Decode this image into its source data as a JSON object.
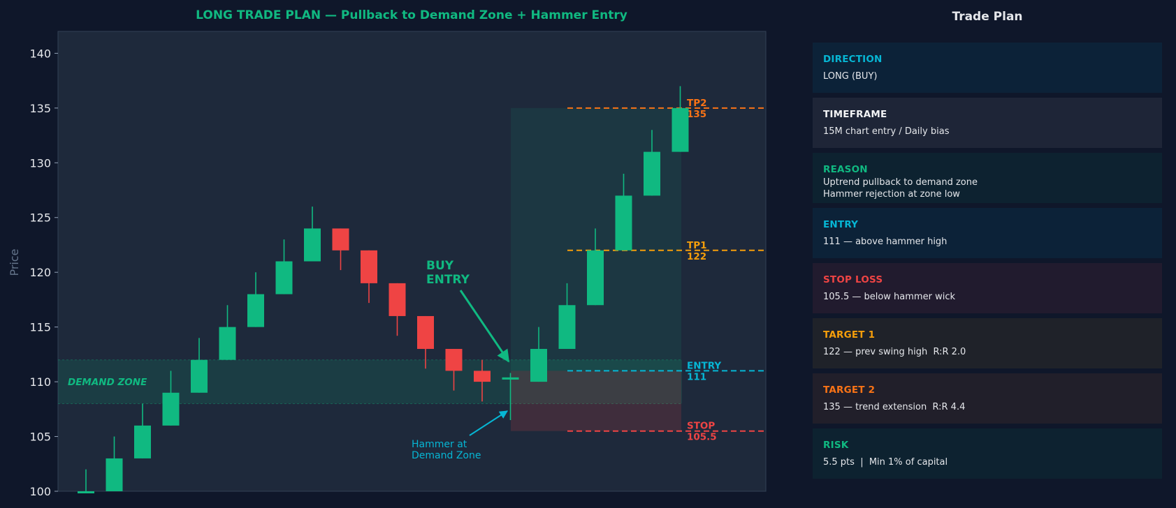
{
  "chart_data": {
    "type": "candlestick",
    "title": "LONG TRADE PLAN — Pullback to Demand Zone + Hammer Entry",
    "ylabel": "Price",
    "ylim": [
      100,
      142
    ],
    "yticks": [
      100,
      105,
      110,
      115,
      120,
      125,
      130,
      135,
      140
    ],
    "candles": [
      {
        "open": 100,
        "high": 102,
        "low": 100,
        "close": 100
      },
      {
        "open": 100,
        "high": 105,
        "low": 100,
        "close": 103
      },
      {
        "open": 103,
        "high": 108,
        "low": 103,
        "close": 106
      },
      {
        "open": 106,
        "high": 111,
        "low": 106,
        "close": 109
      },
      {
        "open": 109,
        "high": 114,
        "low": 109,
        "close": 112
      },
      {
        "open": 112,
        "high": 117,
        "low": 112,
        "close": 115
      },
      {
        "open": 115,
        "high": 120,
        "low": 115,
        "close": 118
      },
      {
        "open": 118,
        "high": 123,
        "low": 118,
        "close": 121
      },
      {
        "open": 121,
        "high": 126,
        "low": 121,
        "close": 124
      },
      {
        "open": 124,
        "high": 124,
        "low": 120.2,
        "close": 122
      },
      {
        "open": 122,
        "high": 122,
        "low": 117.2,
        "close": 119
      },
      {
        "open": 119,
        "high": 119,
        "low": 114.2,
        "close": 116
      },
      {
        "open": 116,
        "high": 116,
        "low": 111.2,
        "close": 113
      },
      {
        "open": 113,
        "high": 113,
        "low": 109.2,
        "close": 111
      },
      {
        "open": 111,
        "high": 112,
        "low": 108.2,
        "close": 110
      },
      {
        "open": 110.2,
        "high": 110.8,
        "low": 106.5,
        "close": 110.4
      },
      {
        "open": 110,
        "high": 115,
        "low": 110,
        "close": 113
      },
      {
        "open": 113,
        "high": 119,
        "low": 113,
        "close": 117
      },
      {
        "open": 117,
        "high": 124,
        "low": 117,
        "close": 122
      },
      {
        "open": 122,
        "high": 129,
        "low": 122,
        "close": 127
      },
      {
        "open": 127,
        "high": 133,
        "low": 127,
        "close": 131
      },
      {
        "open": 131,
        "high": 137,
        "low": 131,
        "close": 135
      }
    ],
    "demand_zone": {
      "low": 108,
      "high": 112,
      "label": "DEMAND ZONE"
    },
    "levels": [
      {
        "name": "TP2",
        "price": 135,
        "value_text": "135",
        "color": "#f97316"
      },
      {
        "name": "TP1",
        "price": 122,
        "value_text": "122",
        "color": "#f59e0b"
      },
      {
        "name": "ENTRY",
        "price": 111,
        "value_text": "111",
        "color": "#06b6d4"
      },
      {
        "name": "STOP",
        "price": 105.5,
        "value_text": "105.5",
        "color": "#ef4444"
      }
    ],
    "annotations": {
      "buy_entry": [
        "BUY",
        "ENTRY"
      ],
      "hammer": [
        "Hammer at",
        "Demand Zone"
      ]
    },
    "colors": {
      "up": "#10b981",
      "down": "#ef4444",
      "background": "#1e293b",
      "page": "#0f172a",
      "title": "#10b981",
      "axis_text": "#e5e7eb",
      "ylabel": "#64748b"
    }
  },
  "panel": {
    "title": "Trade Plan",
    "cards": [
      {
        "label": "DIRECTION",
        "value": "LONG (BUY)",
        "color": "#06b6d4",
        "bg": "#0c2238"
      },
      {
        "label": "TIMEFRAME",
        "value": "15M chart entry / Daily bias",
        "color": "#f3f4f6",
        "bg": "#1e2537"
      },
      {
        "label": "REASON",
        "value": "Uptrend pullback to demand zone\nHammer rejection at zone low",
        "color": "#10b981",
        "bg": "#0d2230"
      },
      {
        "label": "ENTRY",
        "value": "111 — above hammer high",
        "color": "#06b6d4",
        "bg": "#0c2238"
      },
      {
        "label": "STOP LOSS",
        "value": "105.5 — below hammer wick",
        "color": "#ef4444",
        "bg": "#211b2e"
      },
      {
        "label": "TARGET 1",
        "value": "122 — prev swing high  R:R 2.0",
        "color": "#f59e0b",
        "bg": "#1f2229"
      },
      {
        "label": "TARGET 2",
        "value": "135 — trend extension  R:R 4.4",
        "color": "#f97316",
        "bg": "#211f2a"
      },
      {
        "label": "RISK",
        "value": "5.5 pts  |  Min 1% of capital",
        "color": "#10b981",
        "bg": "#0d2230"
      }
    ]
  }
}
